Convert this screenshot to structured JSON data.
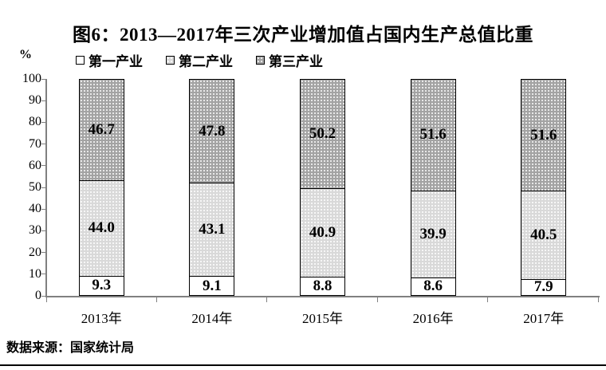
{
  "chart_data": {
    "type": "bar",
    "stacked": true,
    "title": "图6：2013—2017年三次产业增加值占国内生产总值比重",
    "unit_label": "%",
    "categories": [
      "2013年",
      "2014年",
      "2015年",
      "2016年",
      "2017年"
    ],
    "series": [
      {
        "name": "第一产业",
        "values": [
          9.3,
          9.1,
          8.8,
          8.6,
          7.9
        ],
        "labels": [
          "9.3",
          "9.1",
          "8.8",
          "8.6",
          "7.9"
        ],
        "fill": "white"
      },
      {
        "name": "第二产业",
        "values": [
          44.0,
          43.1,
          40.9,
          39.9,
          40.5
        ],
        "labels": [
          "44.0",
          "43.1",
          "40.9",
          "39.9",
          "40.5"
        ],
        "fill": "light-dots"
      },
      {
        "name": "第三产业",
        "values": [
          46.7,
          47.8,
          50.2,
          51.6,
          51.6
        ],
        "labels": [
          "46.7",
          "47.8",
          "50.2",
          "51.6",
          "51.6"
        ],
        "fill": "dark-dots"
      }
    ],
    "ylim": [
      0,
      100
    ],
    "ytick_step": 10,
    "ytick_labels": [
      "0",
      "10",
      "20",
      "30",
      "40",
      "50",
      "60",
      "70",
      "80",
      "90",
      "100"
    ],
    "legend_position": "top-left",
    "grid": false,
    "source": "数据来源：国家统计局",
    "colors": {
      "text": "#000000",
      "axis": "#808080",
      "primary_fill": "#ffffff",
      "secondary_fill": "#d9d9d9",
      "tertiary_fill": "#a3a3a3",
      "dot_pattern": "#ffffff",
      "bar_border": "#000000"
    }
  }
}
